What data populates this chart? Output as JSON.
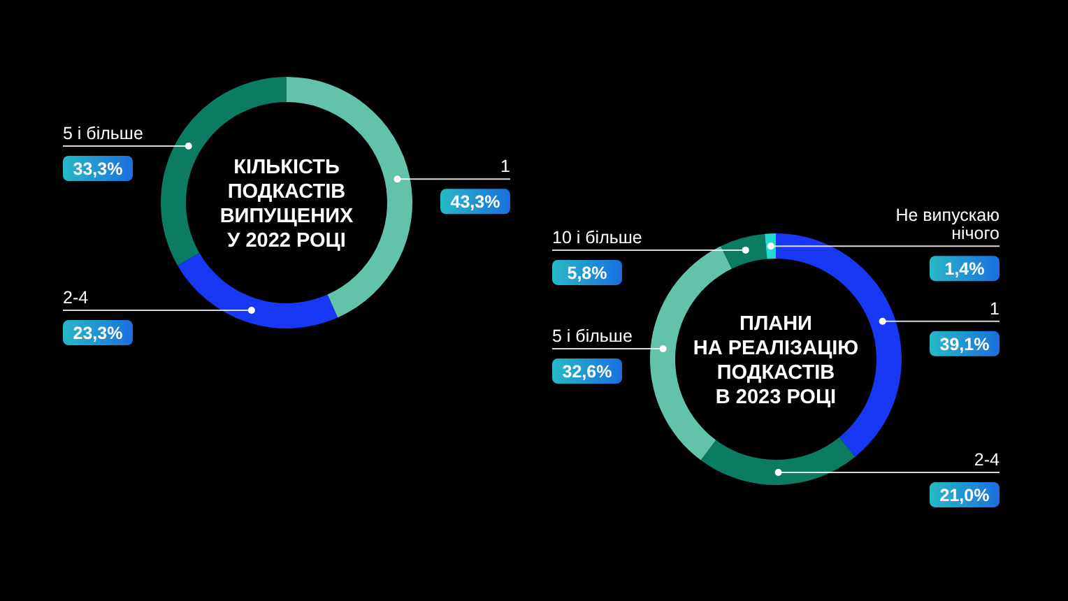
{
  "chart_data": [
    {
      "type": "donut",
      "title": "КІЛЬКІСТЬ\nПОДКАСТІВ\nВИПУЩЕНИХ\nУ 2022 РОЦІ",
      "categories": [
        "1",
        "2-4",
        "5 і більше"
      ],
      "values": [
        43.3,
        23.3,
        33.3
      ],
      "colors": [
        "#62c3aa",
        "#1739f5",
        "#0b7b61"
      ],
      "value_labels": [
        "43,3%",
        "23,3%",
        "33,3%"
      ]
    },
    {
      "type": "donut",
      "title": "ПЛАНИ\nНА РЕАЛІЗАЦІЮ\nПОДКАСТІВ\nВ 2023 РОЦІ",
      "categories": [
        "1",
        "2-4",
        "5 і більше",
        "10 і більше",
        "Не випускаю нічого"
      ],
      "values": [
        39.1,
        21.0,
        32.6,
        5.8,
        1.4
      ],
      "colors": [
        "#1739f5",
        "#0b7b61",
        "#62c3aa",
        "#0b7b61",
        "#1fdccf"
      ],
      "value_labels": [
        "39,1%",
        "21,0%",
        "32,6%",
        "5,8%",
        "1,4%"
      ]
    }
  ]
}
